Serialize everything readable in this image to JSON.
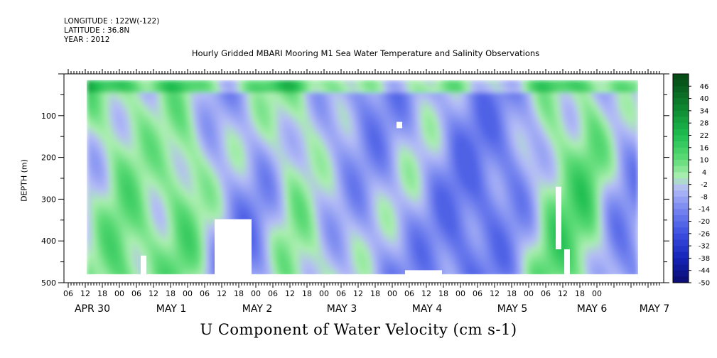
{
  "header": {
    "longitude": "LONGITUDE : 122W(-122)",
    "latitude": "LATITUDE : 36.8N",
    "year": "YEAR : 2012"
  },
  "chart_data": {
    "type": "heatmap",
    "title": "Hourly Gridded MBARI Mooring M1 Sea Water Temperature and Salinity Observations",
    "ylabel": "DEPTH (m)",
    "xlabel": "U Component of Water Velocity (cm s-1)",
    "y_ticks": [
      100,
      200,
      300,
      400,
      500
    ],
    "ylim": [
      500,
      0
    ],
    "x_hour_ticks": [
      "06",
      "12",
      "18",
      "00",
      "06",
      "12",
      "18",
      "00",
      "06",
      "12",
      "18",
      "00",
      "06",
      "12",
      "18",
      "00",
      "06",
      "12",
      "18",
      "00",
      "06",
      "12",
      "18",
      "00",
      "06",
      "12",
      "18",
      "00",
      "06",
      "12",
      "18",
      "00"
    ],
    "x_day_labels": [
      "APR 30",
      "MAY  1",
      "MAY  2",
      "MAY  3",
      "MAY  4",
      "MAY  5",
      "MAY  6",
      "MAY  7"
    ],
    "colorbar_labels": [
      "46",
      "40",
      "34",
      "28",
      "22",
      "16",
      "10",
      "4",
      "-2",
      "-8",
      "-14",
      "-20",
      "-26",
      "-32",
      "-38",
      "-44",
      "-50"
    ],
    "colorbar_range": [
      -50,
      52
    ],
    "colors": {
      "strong_positive": "#0a5a1a",
      "positive": "#22c35a",
      "weak_positive": "#9cf0a6",
      "weak_negative": "#b4bdf6",
      "negative": "#7b88ea",
      "strong_negative": "#1020b0"
    },
    "grid": false
  }
}
